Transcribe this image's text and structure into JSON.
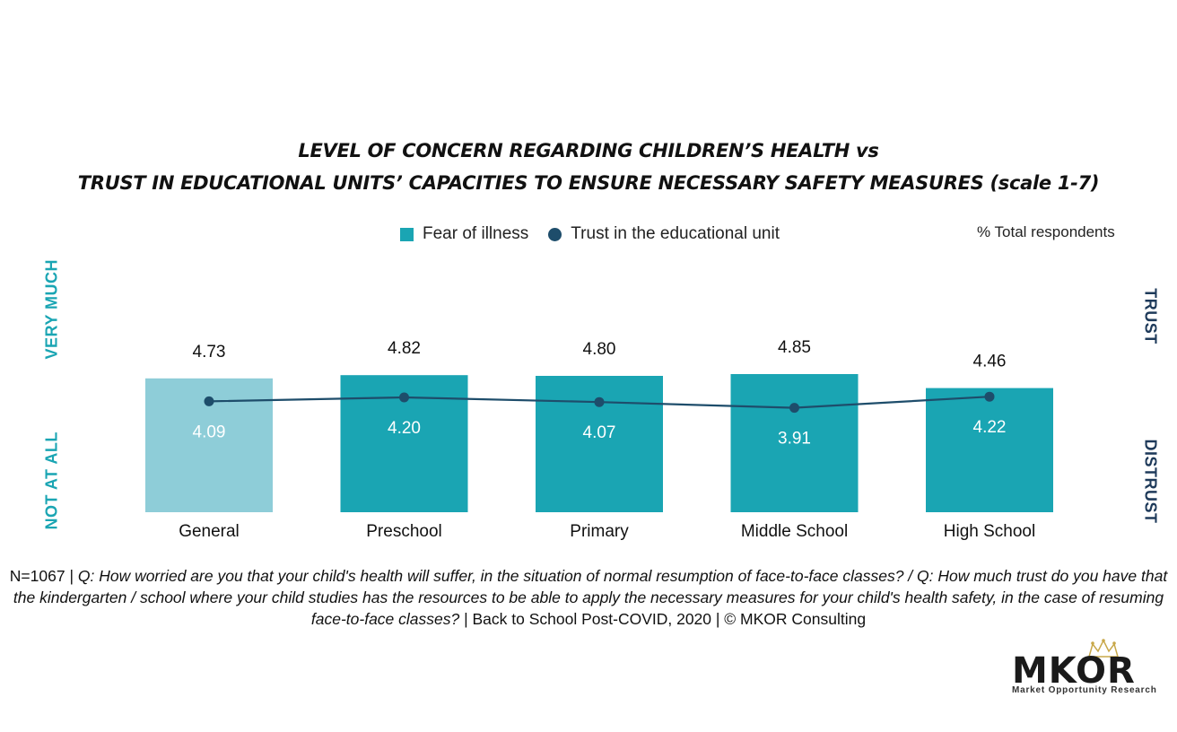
{
  "chart_data": {
    "type": "bar",
    "title_line1": "LEVEL OF CONCERN REGARDING CHILDREN’S HEALTH vs",
    "title_line2": "TRUST IN EDUCATIONAL UNITS’ CAPACITIES TO ENSURE NECESSARY SAFETY MEASURES (scale 1-7)",
    "categories": [
      "General",
      "Preschool",
      "Primary",
      "Middle School",
      "High School"
    ],
    "series": [
      {
        "name": "Fear of illness",
        "kind": "bar",
        "values": [
          4.73,
          4.82,
          4.8,
          4.85,
          4.46
        ],
        "labels": [
          "4.73",
          "4.82",
          "4.80",
          "4.85",
          "4.46"
        ]
      },
      {
        "name": "Trust in the educational unit",
        "kind": "line",
        "values": [
          4.09,
          4.2,
          4.07,
          3.91,
          4.22
        ],
        "labels": [
          "4.09",
          "4.20",
          "4.07",
          "3.91",
          "4.22"
        ]
      }
    ],
    "ylim": [
      1,
      7
    ],
    "left_axis_top": "VERY MUCH",
    "left_axis_bottom": "NOT AT ALL",
    "right_axis_top": "TRUST",
    "right_axis_bottom": "DISTRUST",
    "note": "% Total respondents",
    "colors": {
      "bar": "#1aa5b3",
      "bar_highlight": "#8ecdd8",
      "line": "#1e4d6b"
    }
  },
  "legend": {
    "bar_label": "Fear of illness",
    "line_label": "Trust in the educational unit"
  },
  "footnote": {
    "prefix": "N=1067 | ",
    "question1": "Q: How worried are you that your child's health will suffer, in the situation of normal resumption of face-to-face classes? / Q: How much trust do you have that the kindergarten / school where your child studies has the resources to be able to apply the necessary measures for your child's health safety, in the case of resuming face-to-face classes?",
    "suffix": " | Back to School Post-COVID, 2020 | © MKOR Consulting"
  },
  "logo": {
    "name": "MKOR",
    "tagline": "Market Opportunity Research"
  }
}
